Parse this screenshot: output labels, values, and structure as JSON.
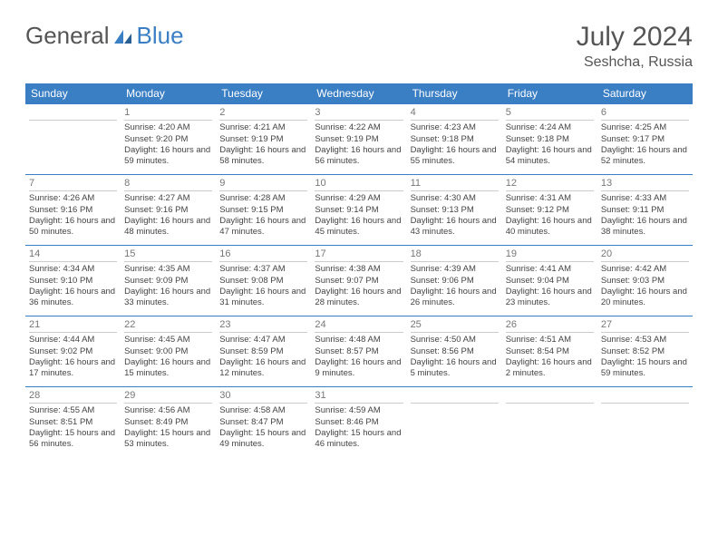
{
  "logo": {
    "general": "General",
    "blue": "Blue"
  },
  "title": "July 2024",
  "location": "Seshcha, Russia",
  "colors": {
    "header_bg": "#3a7fc4",
    "header_text": "#ffffff",
    "row_border": "#3a7fc4",
    "daynum_color": "#777777",
    "text_color": "#333333",
    "logo_blue": "#3a7fc4",
    "logo_gray": "#555555",
    "background": "#ffffff"
  },
  "typography": {
    "title_fontsize": 30,
    "location_fontsize": 16,
    "dayheader_fontsize": 12,
    "cell_fontsize": 9.5,
    "daynum_fontsize": 11
  },
  "day_headers": [
    "Sunday",
    "Monday",
    "Tuesday",
    "Wednesday",
    "Thursday",
    "Friday",
    "Saturday"
  ],
  "weeks": [
    [
      null,
      {
        "n": "1",
        "sr": "Sunrise: 4:20 AM",
        "ss": "Sunset: 9:20 PM",
        "dl": "Daylight: 16 hours and 59 minutes."
      },
      {
        "n": "2",
        "sr": "Sunrise: 4:21 AM",
        "ss": "Sunset: 9:19 PM",
        "dl": "Daylight: 16 hours and 58 minutes."
      },
      {
        "n": "3",
        "sr": "Sunrise: 4:22 AM",
        "ss": "Sunset: 9:19 PM",
        "dl": "Daylight: 16 hours and 56 minutes."
      },
      {
        "n": "4",
        "sr": "Sunrise: 4:23 AM",
        "ss": "Sunset: 9:18 PM",
        "dl": "Daylight: 16 hours and 55 minutes."
      },
      {
        "n": "5",
        "sr": "Sunrise: 4:24 AM",
        "ss": "Sunset: 9:18 PM",
        "dl": "Daylight: 16 hours and 54 minutes."
      },
      {
        "n": "6",
        "sr": "Sunrise: 4:25 AM",
        "ss": "Sunset: 9:17 PM",
        "dl": "Daylight: 16 hours and 52 minutes."
      }
    ],
    [
      {
        "n": "7",
        "sr": "Sunrise: 4:26 AM",
        "ss": "Sunset: 9:16 PM",
        "dl": "Daylight: 16 hours and 50 minutes."
      },
      {
        "n": "8",
        "sr": "Sunrise: 4:27 AM",
        "ss": "Sunset: 9:16 PM",
        "dl": "Daylight: 16 hours and 48 minutes."
      },
      {
        "n": "9",
        "sr": "Sunrise: 4:28 AM",
        "ss": "Sunset: 9:15 PM",
        "dl": "Daylight: 16 hours and 47 minutes."
      },
      {
        "n": "10",
        "sr": "Sunrise: 4:29 AM",
        "ss": "Sunset: 9:14 PM",
        "dl": "Daylight: 16 hours and 45 minutes."
      },
      {
        "n": "11",
        "sr": "Sunrise: 4:30 AM",
        "ss": "Sunset: 9:13 PM",
        "dl": "Daylight: 16 hours and 43 minutes."
      },
      {
        "n": "12",
        "sr": "Sunrise: 4:31 AM",
        "ss": "Sunset: 9:12 PM",
        "dl": "Daylight: 16 hours and 40 minutes."
      },
      {
        "n": "13",
        "sr": "Sunrise: 4:33 AM",
        "ss": "Sunset: 9:11 PM",
        "dl": "Daylight: 16 hours and 38 minutes."
      }
    ],
    [
      {
        "n": "14",
        "sr": "Sunrise: 4:34 AM",
        "ss": "Sunset: 9:10 PM",
        "dl": "Daylight: 16 hours and 36 minutes."
      },
      {
        "n": "15",
        "sr": "Sunrise: 4:35 AM",
        "ss": "Sunset: 9:09 PM",
        "dl": "Daylight: 16 hours and 33 minutes."
      },
      {
        "n": "16",
        "sr": "Sunrise: 4:37 AM",
        "ss": "Sunset: 9:08 PM",
        "dl": "Daylight: 16 hours and 31 minutes."
      },
      {
        "n": "17",
        "sr": "Sunrise: 4:38 AM",
        "ss": "Sunset: 9:07 PM",
        "dl": "Daylight: 16 hours and 28 minutes."
      },
      {
        "n": "18",
        "sr": "Sunrise: 4:39 AM",
        "ss": "Sunset: 9:06 PM",
        "dl": "Daylight: 16 hours and 26 minutes."
      },
      {
        "n": "19",
        "sr": "Sunrise: 4:41 AM",
        "ss": "Sunset: 9:04 PM",
        "dl": "Daylight: 16 hours and 23 minutes."
      },
      {
        "n": "20",
        "sr": "Sunrise: 4:42 AM",
        "ss": "Sunset: 9:03 PM",
        "dl": "Daylight: 16 hours and 20 minutes."
      }
    ],
    [
      {
        "n": "21",
        "sr": "Sunrise: 4:44 AM",
        "ss": "Sunset: 9:02 PM",
        "dl": "Daylight: 16 hours and 17 minutes."
      },
      {
        "n": "22",
        "sr": "Sunrise: 4:45 AM",
        "ss": "Sunset: 9:00 PM",
        "dl": "Daylight: 16 hours and 15 minutes."
      },
      {
        "n": "23",
        "sr": "Sunrise: 4:47 AM",
        "ss": "Sunset: 8:59 PM",
        "dl": "Daylight: 16 hours and 12 minutes."
      },
      {
        "n": "24",
        "sr": "Sunrise: 4:48 AM",
        "ss": "Sunset: 8:57 PM",
        "dl": "Daylight: 16 hours and 9 minutes."
      },
      {
        "n": "25",
        "sr": "Sunrise: 4:50 AM",
        "ss": "Sunset: 8:56 PM",
        "dl": "Daylight: 16 hours and 5 minutes."
      },
      {
        "n": "26",
        "sr": "Sunrise: 4:51 AM",
        "ss": "Sunset: 8:54 PM",
        "dl": "Daylight: 16 hours and 2 minutes."
      },
      {
        "n": "27",
        "sr": "Sunrise: 4:53 AM",
        "ss": "Sunset: 8:52 PM",
        "dl": "Daylight: 15 hours and 59 minutes."
      }
    ],
    [
      {
        "n": "28",
        "sr": "Sunrise: 4:55 AM",
        "ss": "Sunset: 8:51 PM",
        "dl": "Daylight: 15 hours and 56 minutes."
      },
      {
        "n": "29",
        "sr": "Sunrise: 4:56 AM",
        "ss": "Sunset: 8:49 PM",
        "dl": "Daylight: 15 hours and 53 minutes."
      },
      {
        "n": "30",
        "sr": "Sunrise: 4:58 AM",
        "ss": "Sunset: 8:47 PM",
        "dl": "Daylight: 15 hours and 49 minutes."
      },
      {
        "n": "31",
        "sr": "Sunrise: 4:59 AM",
        "ss": "Sunset: 8:46 PM",
        "dl": "Daylight: 15 hours and 46 minutes."
      },
      null,
      null,
      null
    ]
  ]
}
